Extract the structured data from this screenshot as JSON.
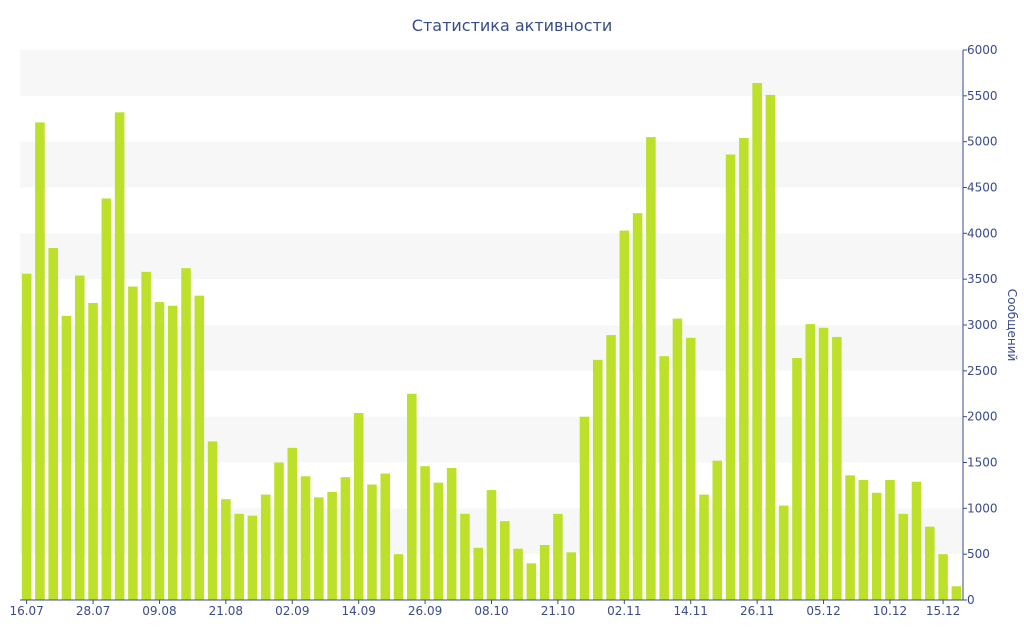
{
  "chart_data": {
    "type": "bar",
    "title": "Статистика активности",
    "xlabel": "",
    "ylabel": "Сообщений",
    "ylim": [
      0,
      6000
    ],
    "ytick_values": [
      0,
      500,
      1000,
      1500,
      2000,
      2500,
      3000,
      3500,
      4000,
      4500,
      5000,
      5500,
      6000
    ],
    "ytick_labels": [
      "0",
      "500",
      "1000",
      "1500",
      "2000",
      "2500",
      "3000",
      "3500",
      "4000",
      "4500",
      "5000",
      "5500",
      "6000"
    ],
    "xtick_labels": [
      "16.07",
      "28.07",
      "09.08",
      "21.08",
      "02.09",
      "14.09",
      "26.09",
      "08.10",
      "21.10",
      "02.11",
      "14.11",
      "26.11",
      "05.12",
      "10.12",
      "15.12"
    ],
    "xtick_bar_index": [
      0,
      5,
      10,
      15,
      20,
      25,
      30,
      35,
      40,
      45,
      50,
      55,
      60,
      65,
      69
    ],
    "grid": "horizontal bands",
    "legend": "none",
    "y_axis_side": "right",
    "bar_color": "#bde02b",
    "band_color": "#f7f7f7",
    "axis_color": "#3a4b8a",
    "values": [
      3560,
      5210,
      3840,
      3100,
      3540,
      3240,
      4380,
      5320,
      3420,
      3580,
      3250,
      3210,
      3620,
      3320,
      1730,
      1100,
      940,
      920,
      1150,
      1500,
      1660,
      1350,
      1120,
      1180,
      1340,
      2040,
      1260,
      1380,
      500,
      2250,
      1460,
      1280,
      1440,
      940,
      570,
      1200,
      860,
      560,
      400,
      600,
      940,
      520,
      2000,
      2620,
      2890,
      4030,
      4220,
      5050,
      2660,
      3070,
      2860,
      1150,
      1520,
      4860,
      5040,
      5640,
      5510,
      1030,
      2640,
      3010,
      2970,
      2870,
      1360,
      1310,
      1170,
      1310,
      940,
      1290,
      800,
      500,
      150
    ]
  }
}
